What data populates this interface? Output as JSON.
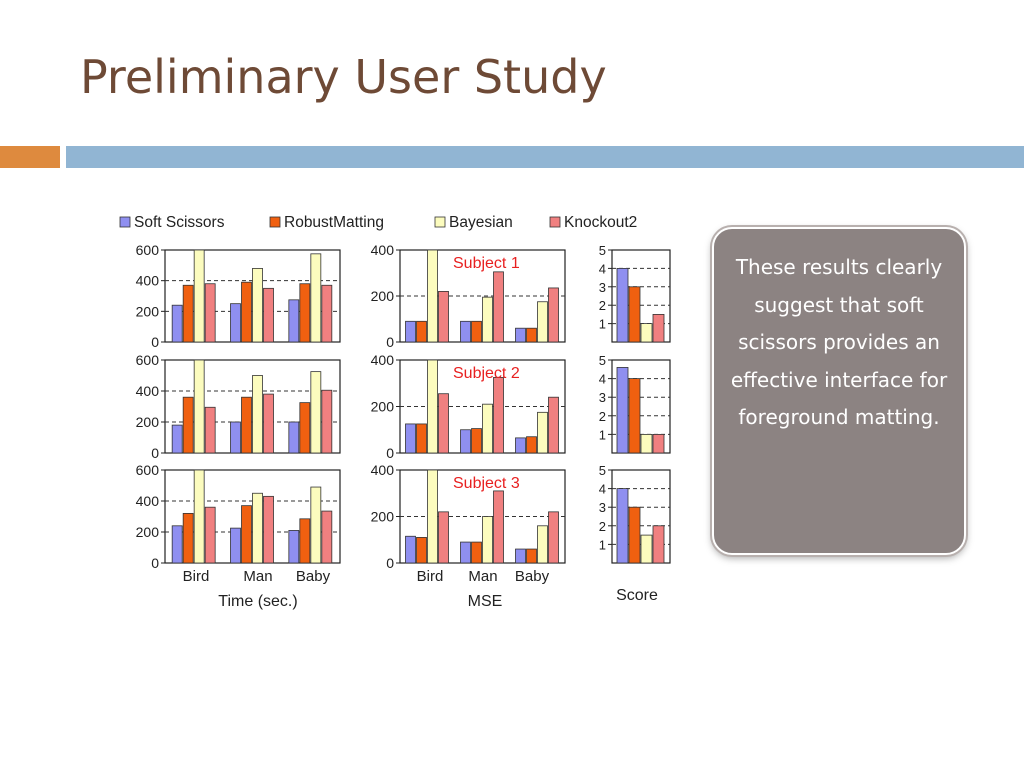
{
  "slide": {
    "title": "Preliminary User Study",
    "callout": "These results clearly suggest that soft scissors provides an effective interface for foreground matting."
  },
  "colors": {
    "Soft Scissors": "#8f8ff0",
    "RobustMatting": "#f06010",
    "Bayesian": "#fcfcbe",
    "Knockout2": "#f08080",
    "subject_label": "#e82020"
  },
  "chart_data": {
    "type": "bar",
    "legend": [
      "Soft Scissors",
      "RobustMatting",
      "Bayesian",
      "Knockout2"
    ],
    "legend_placement": "top",
    "categories": [
      "Bird",
      "Man",
      "Baby"
    ],
    "subjects": [
      "Subject 1",
      "Subject 2",
      "Subject 3"
    ],
    "panels": {
      "time": {
        "xlabel": "Time (sec.)",
        "ylim": [
          0,
          600
        ],
        "yticks": [
          0,
          200,
          400,
          600
        ],
        "grid": "dashed at 200 and 400",
        "data": [
          [
            [
              240,
              370,
              630,
              380
            ],
            [
              250,
              390,
              480,
              350
            ],
            [
              275,
              380,
              575,
              370
            ]
          ],
          [
            [
              180,
              360,
              630,
              295
            ],
            [
              200,
              360,
              500,
              380
            ],
            [
              200,
              325,
              525,
              405
            ]
          ],
          [
            [
              240,
              320,
              630,
              360
            ],
            [
              225,
              370,
              450,
              430
            ],
            [
              210,
              285,
              490,
              335
            ]
          ]
        ]
      },
      "mse": {
        "xlabel": "MSE",
        "ylim": [
          0,
          400
        ],
        "yticks": [
          0,
          200,
          400
        ],
        "grid": "dashed at 200",
        "data": [
          [
            [
              90,
              90,
              420,
              220
            ],
            [
              90,
              90,
              195,
              305
            ],
            [
              60,
              60,
              175,
              235
            ]
          ],
          [
            [
              125,
              125,
              420,
              255
            ],
            [
              100,
              105,
              210,
              325
            ],
            [
              65,
              70,
              175,
              240
            ]
          ],
          [
            [
              115,
              110,
              420,
              220
            ],
            [
              90,
              90,
              200,
              310
            ],
            [
              60,
              60,
              160,
              220
            ]
          ]
        ]
      },
      "score": {
        "xlabel": "Score",
        "ylim": [
          0,
          5
        ],
        "yticks": [
          1,
          2,
          3,
          4,
          5
        ],
        "grid": "dashed at 1, 2, 3, 4",
        "data": [
          [
            4,
            3,
            1,
            1.5
          ],
          [
            4.6,
            4,
            1,
            1
          ],
          [
            4,
            3,
            1.5,
            2
          ]
        ]
      }
    }
  }
}
